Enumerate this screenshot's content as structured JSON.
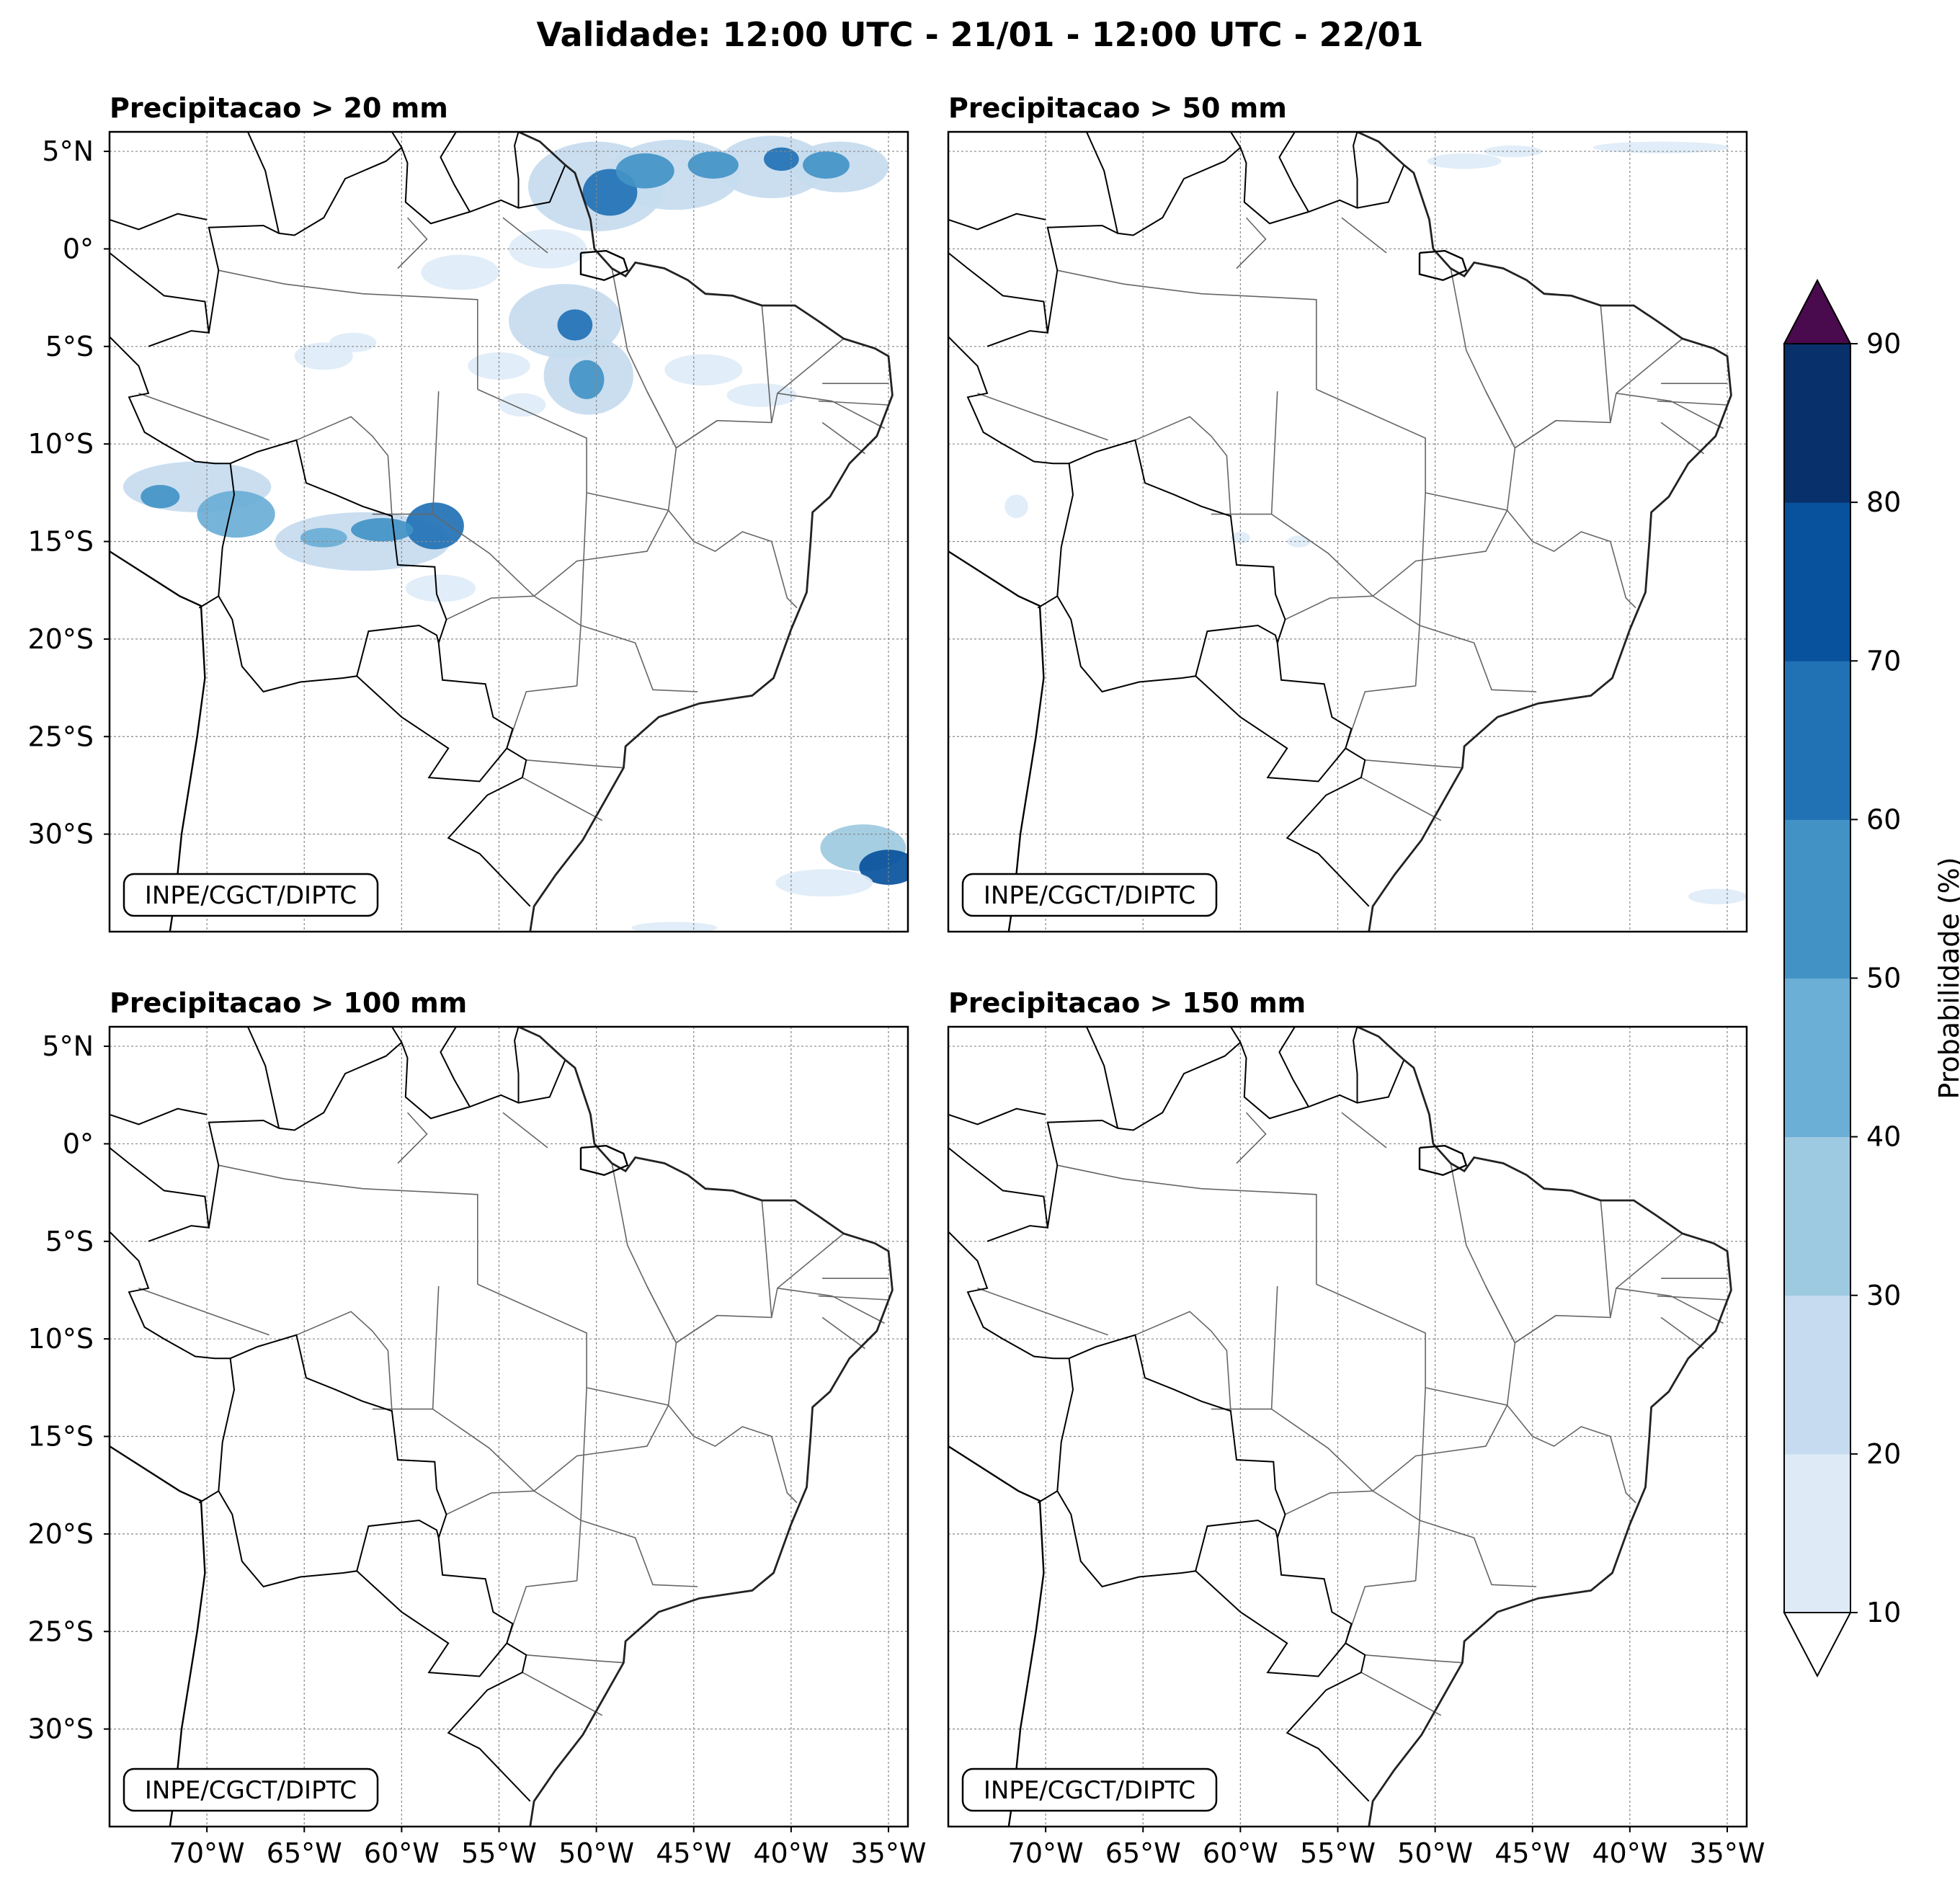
{
  "title": "Validade: 12:00 UTC - 21/01 - 12:00 UTC - 22/01",
  "credit": "INPE/CGCT/DIPTC",
  "panels": [
    {
      "id": "p20",
      "title": "Precipitacao > 20 mm"
    },
    {
      "id": "p50",
      "title": "Precipitacao > 50 mm"
    },
    {
      "id": "p100",
      "title": "Precipitacao > 100 mm"
    },
    {
      "id": "p150",
      "title": "Precipitacao > 150 mm"
    }
  ],
  "lat_ticks": [
    "5°N",
    "0°",
    "5°S",
    "10°S",
    "15°S",
    "20°S",
    "25°S",
    "30°S"
  ],
  "lat_values": [
    5,
    0,
    -5,
    -10,
    -15,
    -20,
    -25,
    -30
  ],
  "lon_ticks": [
    "70°W",
    "65°W",
    "60°W",
    "55°W",
    "50°W",
    "45°W",
    "40°W",
    "35°W"
  ],
  "lon_values": [
    -70,
    -65,
    -60,
    -55,
    -50,
    -45,
    -40,
    -35
  ],
  "extent": {
    "lon": [
      -75,
      -34
    ],
    "lat": [
      -35,
      6
    ]
  },
  "colorbar": {
    "label": "Probabilidade (%)",
    "levels": [
      "10",
      "20",
      "30",
      "40",
      "50",
      "60",
      "70",
      "80",
      "90"
    ],
    "colors": [
      "#deebf7",
      "#c6dbef",
      "#9ecae1",
      "#6baed6",
      "#4292c6",
      "#2171b5",
      "#08519c",
      "#08306b"
    ],
    "over_color": "#4a0a4e",
    "under_color": "#ffffff"
  }
}
